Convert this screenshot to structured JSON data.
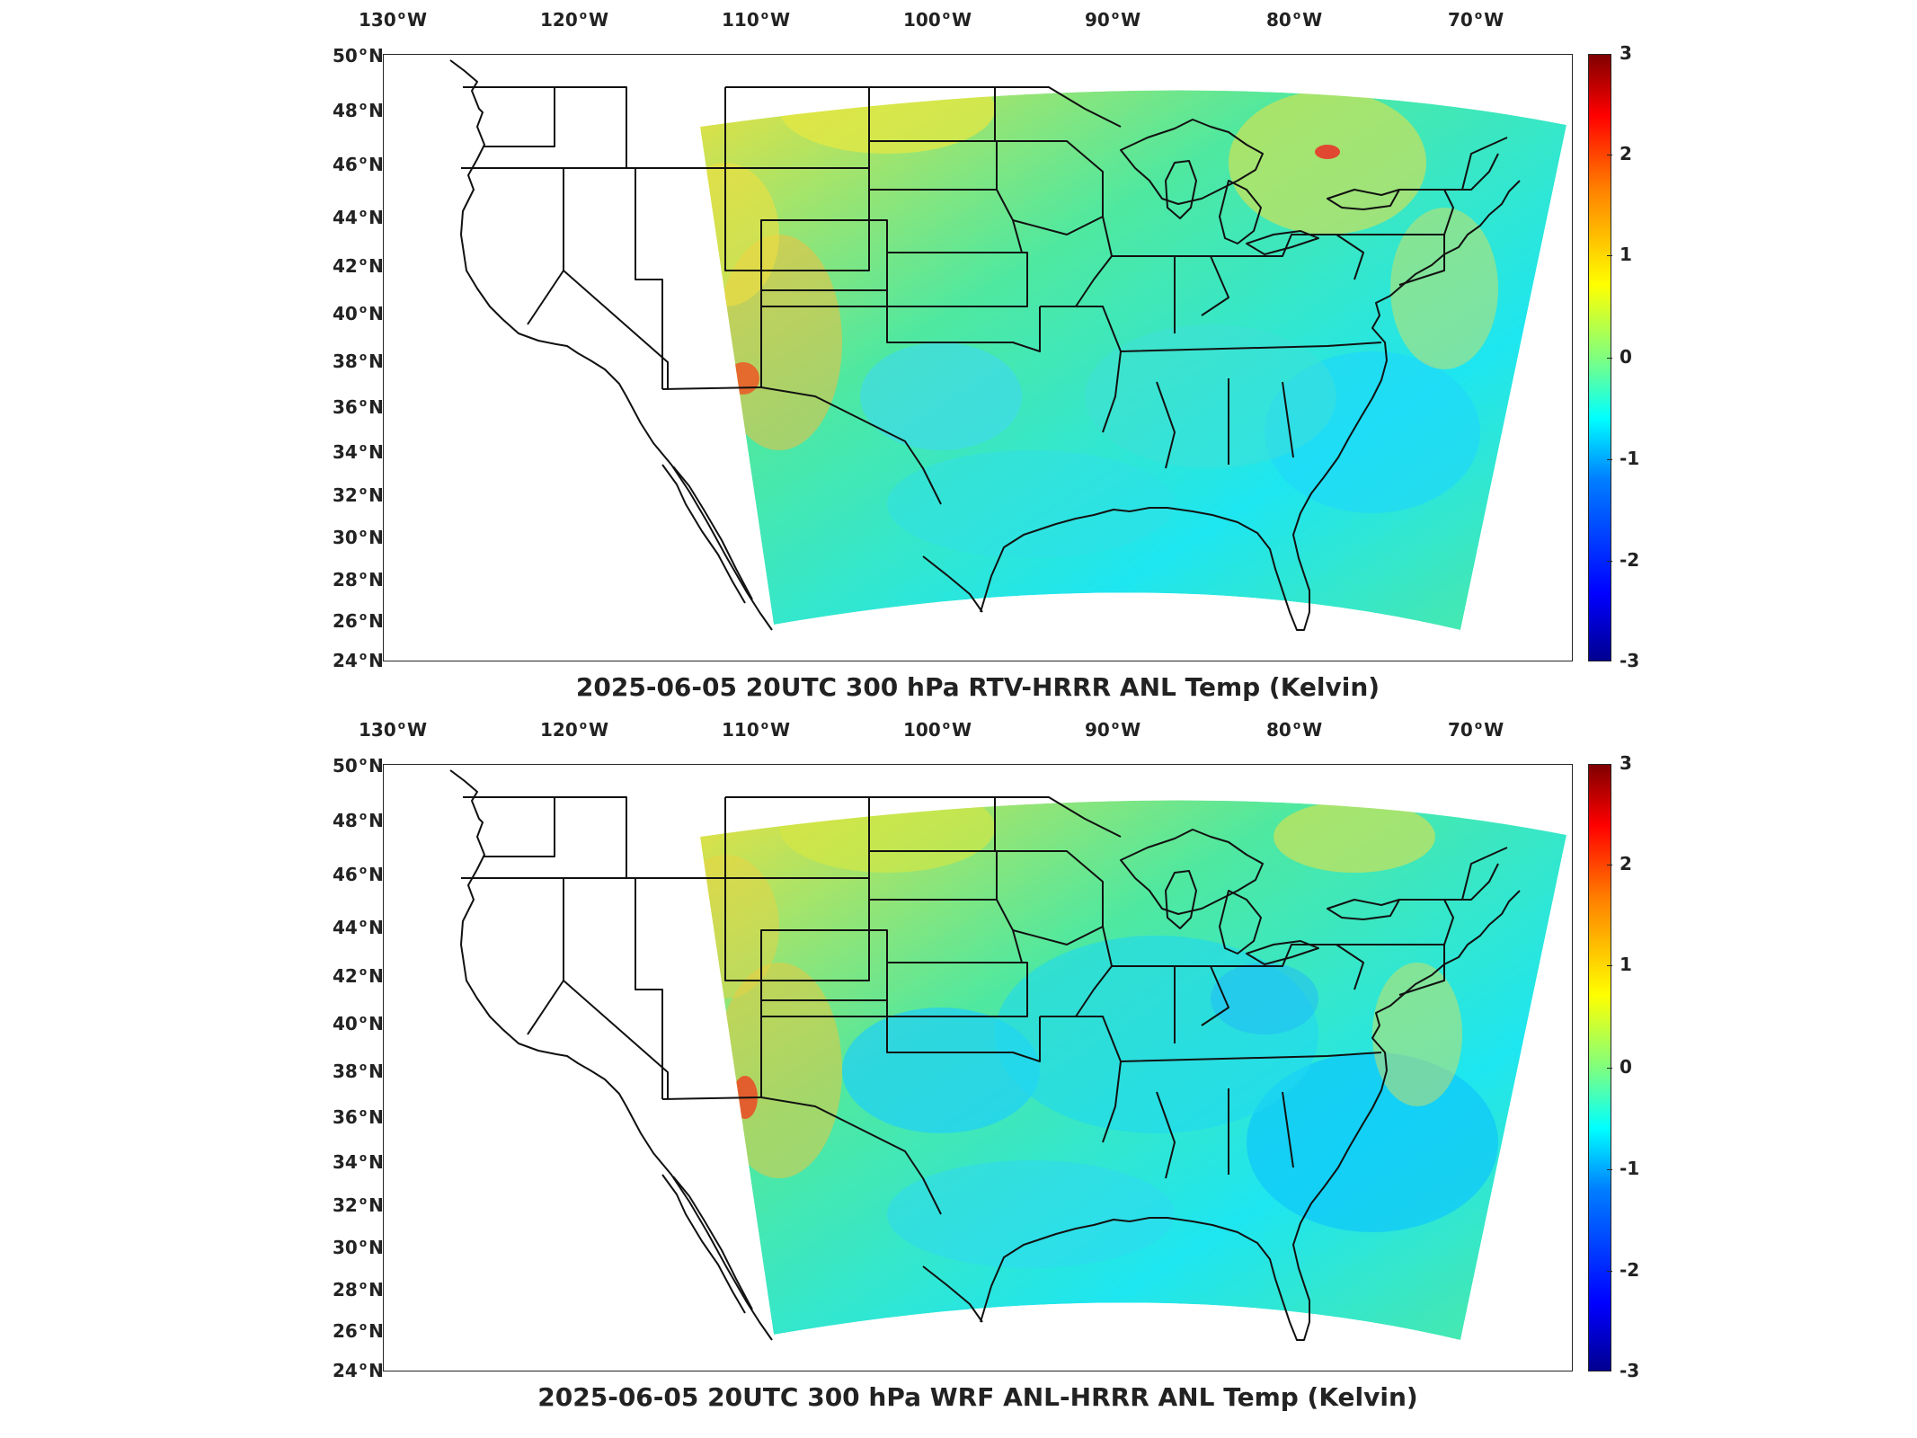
{
  "panels": [
    {
      "title": "2025-06-05 20UTC 300 hPa RTV-HRRR ANL Temp (Kelvin)",
      "variant": "a"
    },
    {
      "title": "2025-06-05 20UTC 300 hPa WRF ANL-HRRR ANL Temp (Kelvin)",
      "variant": "b"
    }
  ],
  "axes": {
    "longitude_ticks": [
      {
        "value": "130",
        "hemi": "W"
      },
      {
        "value": "120",
        "hemi": "W"
      },
      {
        "value": "110",
        "hemi": "W"
      },
      {
        "value": "100",
        "hemi": "W"
      },
      {
        "value": "90",
        "hemi": "W"
      },
      {
        "value": "80",
        "hemi": "W"
      },
      {
        "value": "70",
        "hemi": "W"
      }
    ],
    "latitude_ticks": [
      {
        "value": "50",
        "hemi": "N"
      },
      {
        "value": "48",
        "hemi": "N"
      },
      {
        "value": "46",
        "hemi": "N"
      },
      {
        "value": "44",
        "hemi": "N"
      },
      {
        "value": "42",
        "hemi": "N"
      },
      {
        "value": "40",
        "hemi": "N"
      },
      {
        "value": "38",
        "hemi": "N"
      },
      {
        "value": "36",
        "hemi": "N"
      },
      {
        "value": "34",
        "hemi": "N"
      },
      {
        "value": "32",
        "hemi": "N"
      },
      {
        "value": "30",
        "hemi": "N"
      },
      {
        "value": "28",
        "hemi": "N"
      },
      {
        "value": "26",
        "hemi": "N"
      },
      {
        "value": "24",
        "hemi": "N"
      }
    ]
  },
  "colorbar": {
    "ticks": [
      "3",
      "2",
      "1",
      "0",
      "-1",
      "-2",
      "-3"
    ],
    "range": [
      -3,
      3
    ],
    "colormap": "jet"
  },
  "colors": {
    "background_field": "#4fe8a0",
    "cool_anomaly": "#1ee6f0",
    "warm_anomaly": "#e8e040",
    "hot_spot": "#f05020",
    "borders": "#111111"
  }
}
